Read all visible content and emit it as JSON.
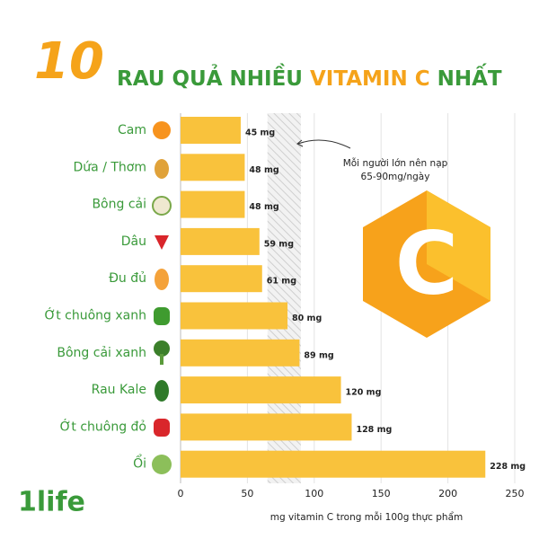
{
  "chart_data": {
    "type": "hbar",
    "title_number": "10",
    "title_parts": [
      "RAU QUẢ NHIỀU",
      "VITAMIN C",
      "NHẤT"
    ],
    "categories": [
      "Cam",
      "Dứa / Thơm",
      "Bông cải",
      "Dâu",
      "Đu đủ",
      "Ớt chuông xanh",
      "Bông cải xanh",
      "Rau Kale",
      "Ớt chuông đỏ",
      "Ổi"
    ],
    "values": [
      45,
      48,
      48,
      59,
      61,
      80,
      89,
      120,
      128,
      228
    ],
    "value_labels": [
      "45 mg",
      "48 mg",
      "48 mg",
      "59 mg",
      "61 mg",
      "80 mg",
      "89 mg",
      "120 mg",
      "128 mg",
      "228 mg"
    ],
    "color": "#f9c23c",
    "xlim": [
      0,
      250
    ],
    "xticks": [
      0,
      50,
      100,
      150,
      200,
      250
    ],
    "grid": true,
    "xlabel": "mg vitamin C trong mỗi 100g thực phẩm",
    "reference_band": [
      65,
      90
    ],
    "annotation": [
      "Mỗi người lớn nên nạp",
      "65-90mg/ngày"
    ],
    "logo_letter": "C",
    "brand": "1life"
  }
}
